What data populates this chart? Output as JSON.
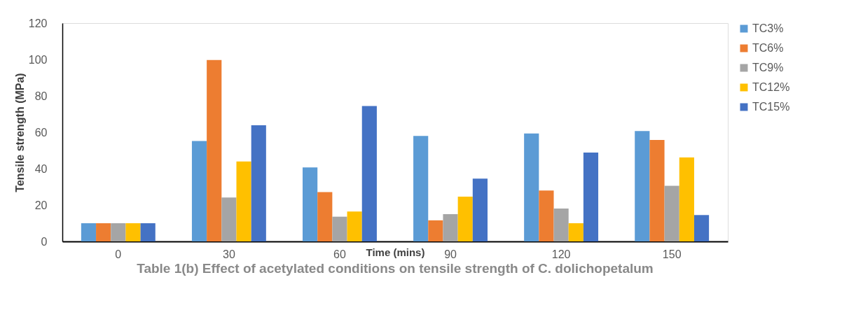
{
  "chart_data": {
    "type": "bar",
    "title": "Table 1(b) Effect of acetylated conditions on tensile strength of C. dolichopetalum",
    "xlabel": "Time (mins)",
    "ylabel": "Tensile strength (MPa)",
    "categories": [
      "0",
      "30",
      "60",
      "90",
      "120",
      "150"
    ],
    "series": [
      {
        "name": "TC3%",
        "color": "#5b9bd5",
        "values": [
          10,
          55.2,
          40.7,
          58.0,
          59.3,
          60.7
        ]
      },
      {
        "name": "TC6%",
        "color": "#ed7d31",
        "values": [
          10,
          99.7,
          27.1,
          11.6,
          28.0,
          55.8
        ]
      },
      {
        "name": "TC9%",
        "color": "#a5a5a5",
        "values": [
          10,
          24.1,
          13.6,
          15.0,
          18.1,
          30.6
        ]
      },
      {
        "name": "TC12%",
        "color": "#ffc000",
        "values": [
          10,
          43.9,
          16.4,
          24.6,
          10.0,
          46.2
        ]
      },
      {
        "name": "TC15%",
        "color": "#4472c4",
        "values": [
          10,
          63.8,
          74.4,
          34.5,
          48.8,
          14.5
        ]
      }
    ],
    "ylim": [
      0,
      120
    ],
    "yticks": [
      0,
      20,
      40,
      60,
      80,
      100,
      120
    ],
    "grid": false,
    "legend": "top right"
  }
}
